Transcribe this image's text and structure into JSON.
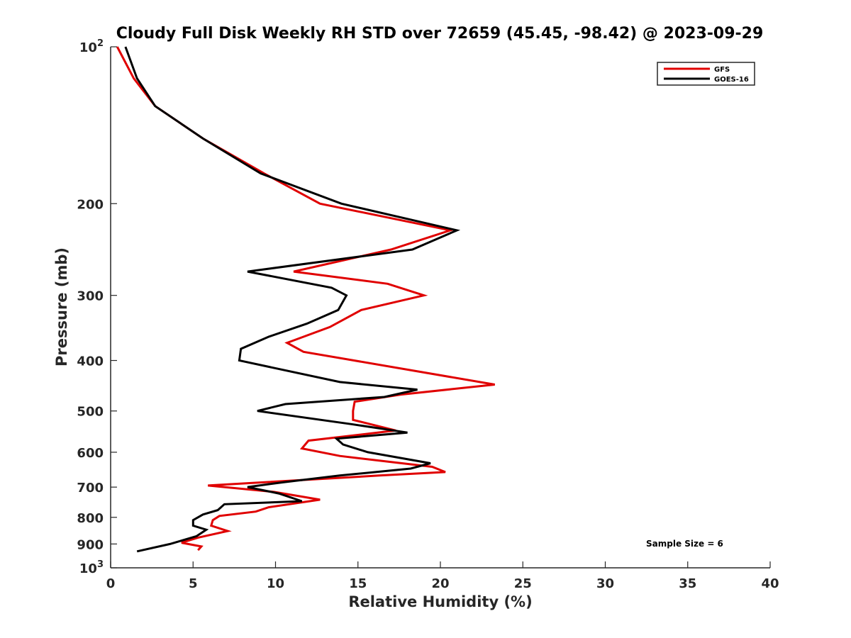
{
  "chart_data": {
    "type": "line",
    "title": "Cloudy Full Disk Weekly RH STD over 72659 (45.45, -98.42) @ 2023-09-29",
    "xlabel": "Relative Humidity (%)",
    "ylabel": "Pressure (mb)",
    "xlim": [
      0,
      40
    ],
    "ylim": [
      100,
      1000
    ],
    "yscale": "log",
    "y_reversed": true,
    "x_ticks": [
      "0",
      "5",
      "10",
      "15",
      "20",
      "25",
      "30",
      "35",
      "40"
    ],
    "y_ticks": [
      {
        "value": 100,
        "base": "10",
        "exp": "2"
      },
      {
        "value": 200,
        "label": "200"
      },
      {
        "value": 300,
        "label": "300"
      },
      {
        "value": 400,
        "label": "400"
      },
      {
        "value": 500,
        "label": "500"
      },
      {
        "value": 600,
        "label": "600"
      },
      {
        "value": 700,
        "label": "700"
      },
      {
        "value": 800,
        "label": "800"
      },
      {
        "value": 900,
        "label": "900"
      },
      {
        "value": 1000,
        "base": "10",
        "exp": "3"
      }
    ],
    "legend_position": "top-right",
    "grid": false,
    "series": [
      {
        "name": "GFS",
        "color": "#e00000",
        "points": [
          [
            0.4,
            100
          ],
          [
            1.4,
            115
          ],
          [
            2.7,
            130
          ],
          [
            5.6,
            150
          ],
          [
            9.3,
            175
          ],
          [
            12.7,
            200
          ],
          [
            20.6,
            225
          ],
          [
            17.0,
            245
          ],
          [
            11.1,
            270
          ],
          [
            16.8,
            285
          ],
          [
            19.0,
            300
          ],
          [
            15.2,
            320
          ],
          [
            13.3,
            345
          ],
          [
            10.7,
            370
          ],
          [
            11.7,
            385
          ],
          [
            23.3,
            445
          ],
          [
            17.6,
            465
          ],
          [
            14.8,
            480
          ],
          [
            14.7,
            500
          ],
          [
            14.7,
            520
          ],
          [
            17.3,
            545
          ],
          [
            12.0,
            570
          ],
          [
            11.6,
            590
          ],
          [
            13.9,
            610
          ],
          [
            19.5,
            640
          ],
          [
            20.3,
            655
          ],
          [
            16.3,
            665
          ],
          [
            5.9,
            695
          ],
          [
            9.9,
            715
          ],
          [
            12.7,
            740
          ],
          [
            9.6,
            765
          ],
          [
            8.8,
            780
          ],
          [
            6.6,
            795
          ],
          [
            6.2,
            810
          ],
          [
            6.1,
            830
          ],
          [
            7.1,
            850
          ],
          [
            5.3,
            875
          ],
          [
            4.3,
            895
          ],
          [
            5.5,
            910
          ],
          [
            5.3,
            925
          ]
        ]
      },
      {
        "name": "GOES-16",
        "color": "#000000",
        "points": [
          [
            0.9,
            100
          ],
          [
            1.6,
            115
          ],
          [
            2.7,
            130
          ],
          [
            5.6,
            150
          ],
          [
            9.1,
            175
          ],
          [
            14.0,
            200
          ],
          [
            21.0,
            225
          ],
          [
            18.3,
            245
          ],
          [
            8.3,
            270
          ],
          [
            13.4,
            290
          ],
          [
            14.3,
            300
          ],
          [
            13.8,
            320
          ],
          [
            11.9,
            340
          ],
          [
            9.6,
            360
          ],
          [
            7.9,
            380
          ],
          [
            7.8,
            400
          ],
          [
            13.9,
            440
          ],
          [
            18.6,
            455
          ],
          [
            16.6,
            470
          ],
          [
            10.6,
            485
          ],
          [
            8.9,
            500
          ],
          [
            14.6,
            530
          ],
          [
            18.0,
            550
          ],
          [
            13.7,
            565
          ],
          [
            14.1,
            580
          ],
          [
            15.6,
            600
          ],
          [
            19.4,
            630
          ],
          [
            18.2,
            645
          ],
          [
            13.9,
            665
          ],
          [
            10.5,
            685
          ],
          [
            8.3,
            700
          ],
          [
            10.2,
            720
          ],
          [
            11.6,
            745
          ],
          [
            6.9,
            755
          ],
          [
            6.5,
            775
          ],
          [
            5.6,
            790
          ],
          [
            5.0,
            810
          ],
          [
            5.0,
            830
          ],
          [
            5.8,
            845
          ],
          [
            5.2,
            870
          ],
          [
            3.6,
            900
          ],
          [
            1.6,
            930
          ]
        ]
      }
    ],
    "annotation": "Sample Size = 6"
  }
}
